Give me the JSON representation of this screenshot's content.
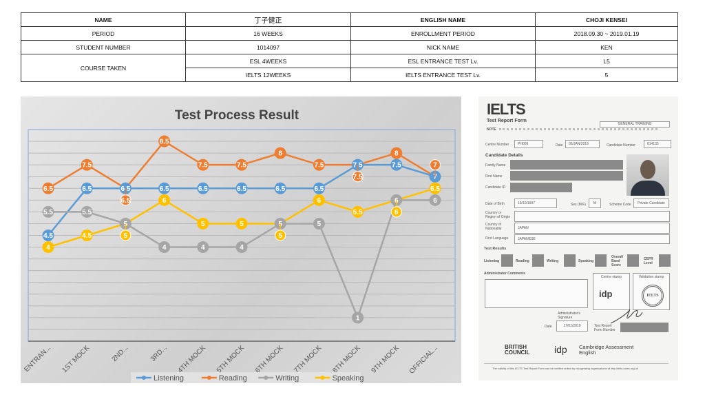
{
  "info_table": {
    "name_label": "NAME",
    "name_value": "丁子健正",
    "english_name_label": "ENGLISH NAME",
    "english_name_value": "CHOJI KENSEI",
    "period_label": "PERIOD",
    "period_value": "16 WEEKS",
    "enrollment_label": "ENROLLMENT PERIOD",
    "enrollment_value": "2018.09.30 ~ 2019.01.19",
    "student_number_label": "STUDENT NUMBER",
    "student_number_value": "1014097",
    "nick_name_label": "NICK NAME",
    "nick_name_value": "KEN",
    "course_label": "COURSE TAKEN",
    "course_1": "ESL  4WEEKS",
    "course_1_test_label": "ESL ENTRANCE TEST Lv.",
    "course_1_test_value": "L5",
    "course_2": "IELTS  12WEEKS",
    "course_2_test_label": "IELTS ENTRANCE TEST Lv.",
    "course_2_test_value": "5"
  },
  "chart_data": {
    "type": "line",
    "title": "Test Process Result",
    "xlabel": "",
    "ylabel": "",
    "ylim": [
      0,
      9
    ],
    "grid": true,
    "legend": "bottom",
    "categories": [
      "ENTRAN...",
      "1ST MOCK",
      "2ND...",
      "3RD...",
      "4TH MOCK",
      "5TH MOCK",
      "6TH MOCK",
      "7TH MOCK",
      "8TH MOCK",
      "9TH MOCK",
      "OFFICIAL..."
    ],
    "series": [
      {
        "name": "Listening",
        "color": "#5b9bd5",
        "values": [
          4.5,
          6.5,
          6.5,
          6.5,
          6.5,
          6.5,
          6.5,
          6.5,
          7.5,
          7.5,
          7
        ]
      },
      {
        "name": "Reading",
        "color": "#ed7d31",
        "values": [
          6.5,
          7.5,
          6.5,
          8.5,
          7.5,
          7.5,
          8,
          7.5,
          7.5,
          8,
          7
        ]
      },
      {
        "name": "Writing",
        "color": "#a5a5a5",
        "values": [
          5.5,
          5.5,
          5,
          4,
          4,
          4,
          5,
          5,
          1,
          6,
          6
        ]
      },
      {
        "name": "Speaking",
        "color": "#ffc000",
        "values": [
          4,
          4.5,
          5,
          6,
          5,
          5,
          5,
          6,
          5.5,
          6,
          6.5
        ]
      }
    ]
  },
  "ielts_form": {
    "logo": "IELTS",
    "title": "Test Report Form",
    "module": "GENERAL TRAINING",
    "note_label": "NOTE",
    "centre_number_label": "Centre Number",
    "centre_number": "PH009",
    "date_label": "Date",
    "date": "05/JAN/2019",
    "candidate_number_label": "Candidate Number",
    "candidate_number": "014133",
    "candidate_details": "Candidate Details",
    "family_name_label": "Family Name",
    "first_name_label": "First Name",
    "candidate_id_label": "Candidate ID",
    "dob_label": "Date of Birth",
    "dob": "19/10/1997",
    "sex_label": "Sex (M/F)",
    "sex": "M",
    "scheme_label": "Scheme Code",
    "scheme": "Private Candidate",
    "country_origin_label": "Country or Region of Origin",
    "nationality_label": "Country of Nationality",
    "nationality": "JAPAN",
    "language_label": "First Language",
    "language": "JAPANESE",
    "test_results": "Test Results",
    "listening": "Listening",
    "reading": "Reading",
    "writing": "Writing",
    "speaking": "Speaking",
    "overall": "Overall Band Score",
    "cefr": "CEFR Level",
    "admin_comments": "Administrator Comments",
    "centre_stamp": "Centre stamp",
    "validation_stamp": "Validation stamp",
    "stamp_idp": "idp",
    "stamp_ielts": "IELTS",
    "admin_signature": "Administrator's Signature",
    "date2_label": "Date",
    "date2": "17/01/2019",
    "trf_label": "Test Report Form Number",
    "british_council": "BRITISH COUNCIL",
    "idp": "idp",
    "cambridge": "Cambridge Assessment English",
    "footer": "The validity of this IELTS Test Report Form can be verified online by recognising organisations at http://ielts.ucles.org.uk"
  }
}
